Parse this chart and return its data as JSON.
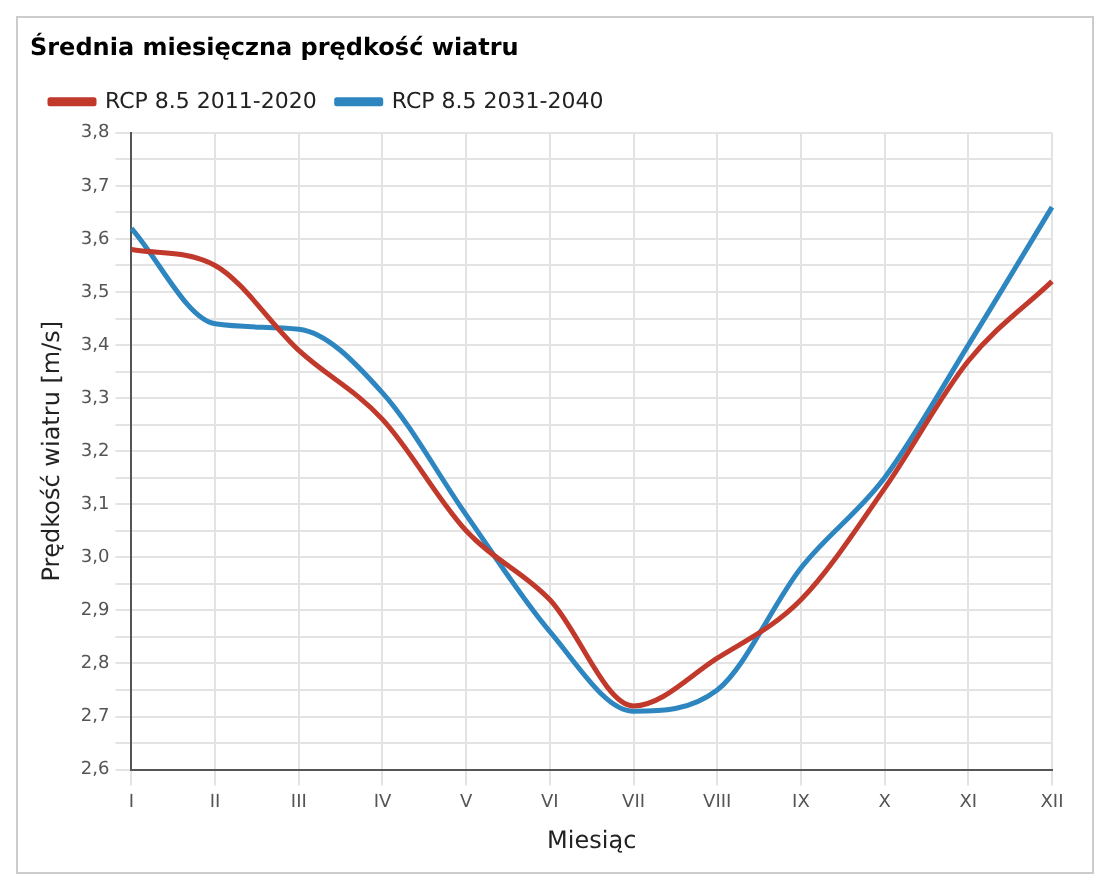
{
  "chart_data": {
    "type": "line",
    "title": "Średnia miesięczna prędkość wiatru",
    "xlabel": "Miesiąc",
    "ylabel": "Prędkość wiatru [m/s]",
    "categories": [
      "I",
      "II",
      "III",
      "IV",
      "V",
      "VI",
      "VII",
      "VIII",
      "IX",
      "X",
      "XI",
      "XII"
    ],
    "series": [
      {
        "name": "RCP 8.5 2011-2020",
        "color": "#c0392b",
        "values": [
          3.58,
          3.55,
          3.39,
          3.26,
          3.05,
          2.92,
          2.72,
          2.81,
          2.92,
          3.13,
          3.37,
          3.52
        ]
      },
      {
        "name": "RCP 8.5 2031-2040",
        "color": "#2e86c1",
        "values": [
          3.62,
          3.44,
          3.43,
          3.31,
          3.08,
          2.86,
          2.71,
          2.75,
          2.98,
          3.15,
          3.4,
          3.66
        ]
      }
    ],
    "ylim": [
      2.6,
      3.8
    ],
    "yticks": [
      {
        "value": 2.6,
        "label": "2,6"
      },
      {
        "value": 2.65,
        "label": null
      },
      {
        "value": 2.7,
        "label": "2,7"
      },
      {
        "value": 2.75,
        "label": null
      },
      {
        "value": 2.8,
        "label": "2,8"
      },
      {
        "value": 2.85,
        "label": null
      },
      {
        "value": 2.9,
        "label": "2,9"
      },
      {
        "value": 2.95,
        "label": null
      },
      {
        "value": 3.0,
        "label": "3,0"
      },
      {
        "value": 3.05,
        "label": null
      },
      {
        "value": 3.1,
        "label": "3,1"
      },
      {
        "value": 3.15,
        "label": null
      },
      {
        "value": 3.2,
        "label": "3,2"
      },
      {
        "value": 3.25,
        "label": null
      },
      {
        "value": 3.3,
        "label": "3,3"
      },
      {
        "value": 3.35,
        "label": null
      },
      {
        "value": 3.4,
        "label": "3,4"
      },
      {
        "value": 3.45,
        "label": null
      },
      {
        "value": 3.5,
        "label": "3,5"
      },
      {
        "value": 3.55,
        "label": null
      },
      {
        "value": 3.6,
        "label": "3,6"
      },
      {
        "value": 3.65,
        "label": null
      },
      {
        "value": 3.7,
        "label": "3,7"
      },
      {
        "value": 3.75,
        "label": null
      },
      {
        "value": 3.8,
        "label": "3,8"
      }
    ],
    "grid": true,
    "legend": "top left",
    "marker": "none",
    "line_style": "solid"
  }
}
